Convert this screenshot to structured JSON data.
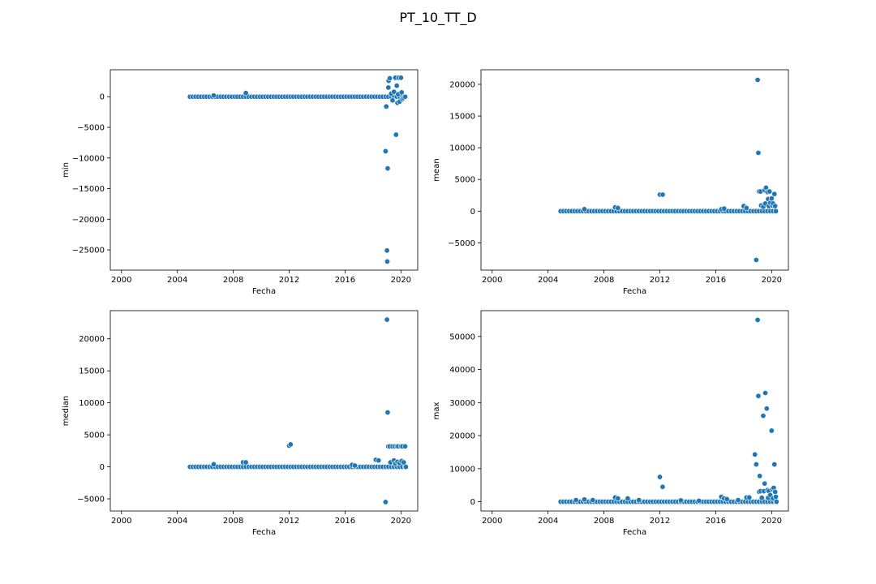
{
  "figure_title": "PT_10_TT_D",
  "chart_data": [
    {
      "type": "scatter",
      "title": "",
      "xlabel": "Fecha",
      "ylabel": "min",
      "x_ticks": [
        2000,
        2004,
        2008,
        2012,
        2016,
        2020
      ],
      "y_ticks": [
        0,
        -5000,
        -10000,
        -15000,
        -20000,
        -25000
      ],
      "xlim": [
        1999.2,
        2021.2
      ],
      "ylim": [
        -28300,
        4400
      ],
      "color": "#1f77b4",
      "baseline": {
        "x_start": 2004.9,
        "x_end": 2020.4,
        "step": 0.2,
        "y": 0
      },
      "points": [
        {
          "x": 2006.6,
          "y": 200
        },
        {
          "x": 2008.9,
          "y": 600
        },
        {
          "x": 2018.9,
          "y": -8900
        },
        {
          "x": 2018.95,
          "y": -1600
        },
        {
          "x": 2019.0,
          "y": -25100
        },
        {
          "x": 2019.02,
          "y": -26900
        },
        {
          "x": 2019.05,
          "y": -11700
        },
        {
          "x": 2019.1,
          "y": 1500
        },
        {
          "x": 2019.12,
          "y": 2600
        },
        {
          "x": 2019.2,
          "y": 3000
        },
        {
          "x": 2019.3,
          "y": 500
        },
        {
          "x": 2019.4,
          "y": -600
        },
        {
          "x": 2019.5,
          "y": 800
        },
        {
          "x": 2019.6,
          "y": 3100
        },
        {
          "x": 2019.65,
          "y": -6200
        },
        {
          "x": 2019.7,
          "y": 1800
        },
        {
          "x": 2019.75,
          "y": -1000
        },
        {
          "x": 2019.8,
          "y": 400
        },
        {
          "x": 2019.85,
          "y": 3100
        },
        {
          "x": 2019.9,
          "y": -800
        },
        {
          "x": 2020.0,
          "y": 3100
        },
        {
          "x": 2020.05,
          "y": 700
        },
        {
          "x": 2020.1,
          "y": -400
        },
        {
          "x": 2020.2,
          "y": -200
        },
        {
          "x": 2020.3,
          "y": 0
        }
      ]
    },
    {
      "type": "scatter",
      "title": "",
      "xlabel": "Fecha",
      "ylabel": "mean",
      "x_ticks": [
        2000,
        2004,
        2008,
        2012,
        2016,
        2020
      ],
      "y_ticks": [
        20000,
        15000,
        10000,
        5000,
        0,
        -5000
      ],
      "xlim": [
        1999.2,
        2021.2
      ],
      "ylim": [
        -9300,
        22300
      ],
      "color": "#1f77b4",
      "baseline": {
        "x_start": 2004.9,
        "x_end": 2020.4,
        "step": 0.2,
        "y": 0
      },
      "points": [
        {
          "x": 2006.6,
          "y": 300
        },
        {
          "x": 2008.8,
          "y": 600
        },
        {
          "x": 2009.0,
          "y": 500
        },
        {
          "x": 2012.0,
          "y": 2600
        },
        {
          "x": 2012.2,
          "y": 2600
        },
        {
          "x": 2016.4,
          "y": 300
        },
        {
          "x": 2016.6,
          "y": 400
        },
        {
          "x": 2018.0,
          "y": 800
        },
        {
          "x": 2018.2,
          "y": 500
        },
        {
          "x": 2018.9,
          "y": -7700
        },
        {
          "x": 2019.0,
          "y": 20700
        },
        {
          "x": 2019.05,
          "y": 9200
        },
        {
          "x": 2019.1,
          "y": 3100
        },
        {
          "x": 2019.2,
          "y": 3100
        },
        {
          "x": 2019.25,
          "y": 900
        },
        {
          "x": 2019.4,
          "y": 700
        },
        {
          "x": 2019.5,
          "y": 3300
        },
        {
          "x": 2019.55,
          "y": 1200
        },
        {
          "x": 2019.6,
          "y": 3700
        },
        {
          "x": 2019.7,
          "y": 3000
        },
        {
          "x": 2019.75,
          "y": 1900
        },
        {
          "x": 2019.8,
          "y": 800
        },
        {
          "x": 2019.85,
          "y": 3100
        },
        {
          "x": 2019.9,
          "y": 1300
        },
        {
          "x": 2020.0,
          "y": 2000
        },
        {
          "x": 2020.05,
          "y": 900
        },
        {
          "x": 2020.1,
          "y": 1200
        },
        {
          "x": 2020.2,
          "y": 2700
        },
        {
          "x": 2020.25,
          "y": 800
        },
        {
          "x": 2020.3,
          "y": 0
        }
      ]
    },
    {
      "type": "scatter",
      "title": "",
      "xlabel": "Fecha",
      "ylabel": "median",
      "x_ticks": [
        2000,
        2004,
        2008,
        2012,
        2016,
        2020
      ],
      "y_ticks": [
        20000,
        15000,
        10000,
        5000,
        0,
        -5000
      ],
      "xlim": [
        1999.2,
        2021.2
      ],
      "ylim": [
        -6900,
        24400
      ],
      "color": "#1f77b4",
      "baseline": {
        "x_start": 2004.9,
        "x_end": 2020.4,
        "step": 0.2,
        "y": 0
      },
      "points": [
        {
          "x": 2006.6,
          "y": 400
        },
        {
          "x": 2008.7,
          "y": 700
        },
        {
          "x": 2008.9,
          "y": 700
        },
        {
          "x": 2012.0,
          "y": 3300
        },
        {
          "x": 2012.1,
          "y": 3500
        },
        {
          "x": 2016.5,
          "y": 300
        },
        {
          "x": 2016.7,
          "y": 200
        },
        {
          "x": 2018.2,
          "y": 1100
        },
        {
          "x": 2018.4,
          "y": 1000
        },
        {
          "x": 2018.9,
          "y": -5500
        },
        {
          "x": 2019.0,
          "y": 23000
        },
        {
          "x": 2019.05,
          "y": 8500
        },
        {
          "x": 2019.1,
          "y": 3200
        },
        {
          "x": 2019.2,
          "y": 3200
        },
        {
          "x": 2019.25,
          "y": 700
        },
        {
          "x": 2019.4,
          "y": 3200
        },
        {
          "x": 2019.5,
          "y": 1000
        },
        {
          "x": 2019.55,
          "y": 3200
        },
        {
          "x": 2019.6,
          "y": 500
        },
        {
          "x": 2019.7,
          "y": 3200
        },
        {
          "x": 2019.75,
          "y": 800
        },
        {
          "x": 2019.8,
          "y": 3200
        },
        {
          "x": 2019.9,
          "y": 600
        },
        {
          "x": 2020.0,
          "y": 3200
        },
        {
          "x": 2020.05,
          "y": 900
        },
        {
          "x": 2020.1,
          "y": 3200
        },
        {
          "x": 2020.2,
          "y": 700
        },
        {
          "x": 2020.3,
          "y": 3200
        },
        {
          "x": 2020.35,
          "y": 0
        }
      ]
    },
    {
      "type": "scatter",
      "title": "",
      "xlabel": "Fecha",
      "ylabel": "max",
      "x_ticks": [
        2000,
        2004,
        2008,
        2012,
        2016,
        2020
      ],
      "y_ticks": [
        50000,
        40000,
        30000,
        20000,
        10000,
        0
      ],
      "xlim": [
        1999.2,
        2021.2
      ],
      "ylim": [
        -2800,
        57800
      ],
      "color": "#1f77b4",
      "baseline": {
        "x_start": 2004.9,
        "x_end": 2020.4,
        "step": 0.2,
        "y": 0
      },
      "points": [
        {
          "x": 2006.0,
          "y": 500
        },
        {
          "x": 2006.6,
          "y": 700
        },
        {
          "x": 2007.2,
          "y": 500
        },
        {
          "x": 2008.8,
          "y": 1300
        },
        {
          "x": 2009.0,
          "y": 1000
        },
        {
          "x": 2009.7,
          "y": 1000
        },
        {
          "x": 2010.5,
          "y": 500
        },
        {
          "x": 2012.0,
          "y": 7500
        },
        {
          "x": 2012.2,
          "y": 4500
        },
        {
          "x": 2013.5,
          "y": 400
        },
        {
          "x": 2014.8,
          "y": 300
        },
        {
          "x": 2016.4,
          "y": 1500
        },
        {
          "x": 2016.6,
          "y": 1000
        },
        {
          "x": 2016.8,
          "y": 800
        },
        {
          "x": 2017.6,
          "y": 500
        },
        {
          "x": 2018.2,
          "y": 1300
        },
        {
          "x": 2018.4,
          "y": 1300
        },
        {
          "x": 2018.8,
          "y": 14300
        },
        {
          "x": 2018.9,
          "y": 11300
        },
        {
          "x": 2019.0,
          "y": 55000
        },
        {
          "x": 2019.05,
          "y": 32000
        },
        {
          "x": 2019.1,
          "y": 3000
        },
        {
          "x": 2019.15,
          "y": 7800
        },
        {
          "x": 2019.2,
          "y": 3200
        },
        {
          "x": 2019.3,
          "y": 1200
        },
        {
          "x": 2019.4,
          "y": 26000
        },
        {
          "x": 2019.45,
          "y": 3200
        },
        {
          "x": 2019.5,
          "y": 5500
        },
        {
          "x": 2019.55,
          "y": 32900
        },
        {
          "x": 2019.65,
          "y": 28200
        },
        {
          "x": 2019.7,
          "y": 3500
        },
        {
          "x": 2019.75,
          "y": 1200
        },
        {
          "x": 2019.8,
          "y": 3200
        },
        {
          "x": 2019.9,
          "y": 2000
        },
        {
          "x": 2020.0,
          "y": 21500
        },
        {
          "x": 2020.05,
          "y": 3800
        },
        {
          "x": 2020.1,
          "y": 1000
        },
        {
          "x": 2020.15,
          "y": 4200
        },
        {
          "x": 2020.2,
          "y": 11300
        },
        {
          "x": 2020.25,
          "y": 3000
        },
        {
          "x": 2020.3,
          "y": 1500
        },
        {
          "x": 2020.35,
          "y": 0
        }
      ]
    }
  ]
}
